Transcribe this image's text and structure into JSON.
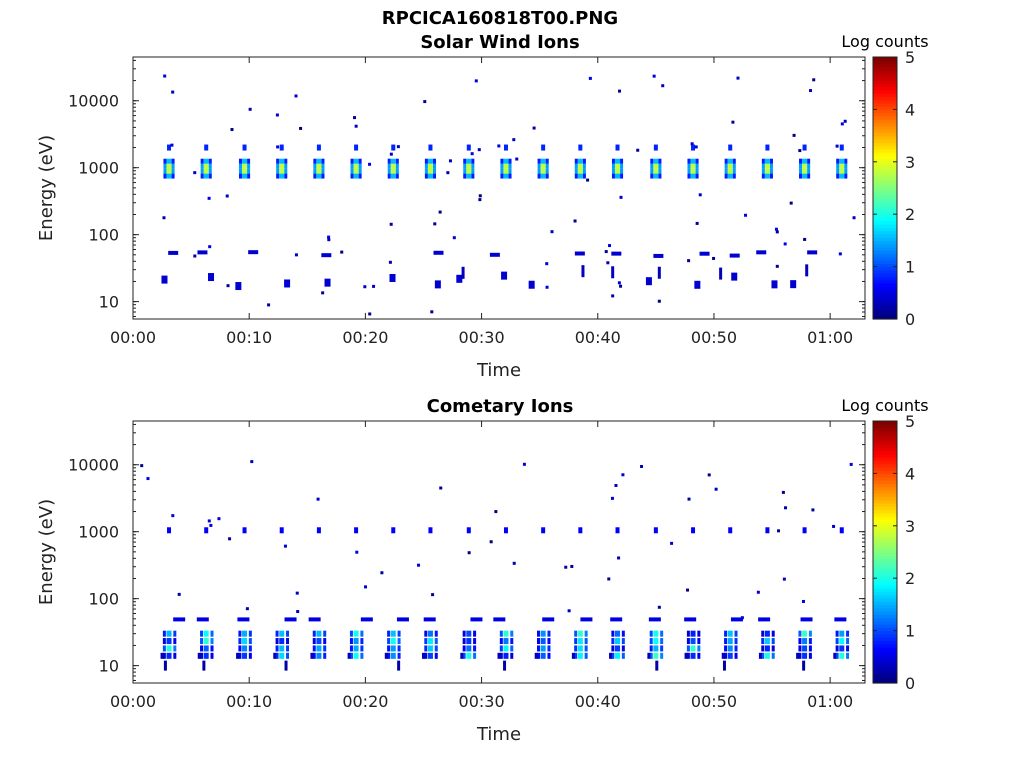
{
  "figure_title": "RPCICA160818T00.PNG",
  "colorbar": {
    "label": "Log counts",
    "range": [
      0,
      5
    ],
    "ticks": [
      "0",
      "1",
      "2",
      "3",
      "4",
      "5"
    ],
    "colormap": "jet"
  },
  "chart_data": [
    {
      "type": "heatmap",
      "title": "Solar Wind Ions",
      "xlabel": "Time",
      "ylabel": "Energy (eV)",
      "yscale": "log",
      "ylim": [
        5.5,
        45000
      ],
      "xlim_minutes": [
        0,
        63
      ],
      "xticks": [
        "00:00",
        "00:10",
        "00:20",
        "00:30",
        "00:40",
        "00:50",
        "01:00"
      ],
      "yticks": [
        "10",
        "100",
        "1000",
        "10000"
      ],
      "scan_times_minutes": [
        3.1,
        6.3,
        9.6,
        12.8,
        16.0,
        19.2,
        22.4,
        25.6,
        28.9,
        32.1,
        35.3,
        38.5,
        41.7,
        45.0,
        48.2,
        51.4,
        54.6,
        57.8,
        61.0
      ],
      "main_band": {
        "energy_eV": [
          750,
          1250
        ],
        "peak_log_counts": 2.8,
        "secondary_energy_eV": 2000,
        "secondary_log_counts": 0.8
      },
      "low_energy_band": {
        "energy_eV": [
          15,
          60
        ],
        "typical_log_counts": 0.4
      },
      "scattered_max_log_counts": 0.6
    },
    {
      "type": "heatmap",
      "title": "Cometary Ions",
      "xlabel": "Time",
      "ylabel": "Energy (eV)",
      "yscale": "log",
      "ylim": [
        5.5,
        45000
      ],
      "xlim_minutes": [
        0,
        63
      ],
      "xticks": [
        "00:00",
        "00:10",
        "00:20",
        "00:30",
        "00:40",
        "00:50",
        "01:00"
      ],
      "yticks": [
        "10",
        "100",
        "1000",
        "10000"
      ],
      "scan_times_minutes": [
        3.1,
        6.3,
        9.6,
        12.8,
        16.0,
        19.2,
        22.4,
        25.6,
        28.9,
        32.1,
        35.3,
        38.5,
        41.7,
        45.0,
        48.2,
        51.4,
        54.6,
        57.8,
        61.0
      ],
      "main_band": {
        "energy_eV": [
          14,
          30
        ],
        "peak_log_counts": 2.2
      },
      "upper_band": {
        "energy_eV": [
          900,
          1200
        ],
        "typical_log_counts": 0.6
      },
      "scattered_max_log_counts": 0.5
    }
  ]
}
